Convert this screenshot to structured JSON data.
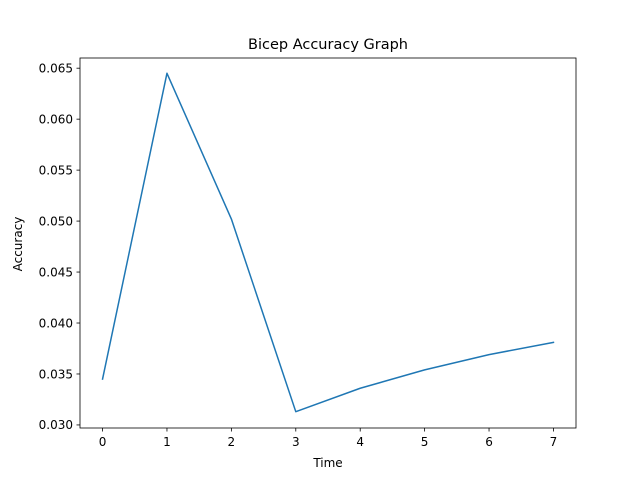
{
  "chart_data": {
    "type": "line",
    "title": "Bicep Accuracy Graph",
    "xlabel": "Time",
    "ylabel": "Accuracy",
    "x": [
      0,
      1,
      2,
      3,
      4,
      5,
      6,
      7
    ],
    "series": [
      {
        "values": [
          0.0345,
          0.0645,
          0.0502,
          0.0313,
          0.0336,
          0.0354,
          0.0369,
          0.0381
        ],
        "color": "#1f77b4"
      }
    ],
    "xlim": [
      -0.35,
      7.35
    ],
    "ylim": [
      0.0297,
      0.066
    ],
    "xticks": [
      {
        "value": 0,
        "label": "0"
      },
      {
        "value": 1,
        "label": "1"
      },
      {
        "value": 2,
        "label": "2"
      },
      {
        "value": 3,
        "label": "3"
      },
      {
        "value": 4,
        "label": "4"
      },
      {
        "value": 5,
        "label": "5"
      },
      {
        "value": 6,
        "label": "6"
      },
      {
        "value": 7,
        "label": "7"
      }
    ],
    "yticks": [
      {
        "value": 0.03,
        "label": "0.030"
      },
      {
        "value": 0.035,
        "label": "0.035"
      },
      {
        "value": 0.04,
        "label": "0.040"
      },
      {
        "value": 0.045,
        "label": "0.045"
      },
      {
        "value": 0.05,
        "label": "0.050"
      },
      {
        "value": 0.055,
        "label": "0.055"
      },
      {
        "value": 0.06,
        "label": "0.060"
      },
      {
        "value": 0.065,
        "label": "0.065"
      }
    ],
    "grid": false,
    "legend": "none"
  }
}
